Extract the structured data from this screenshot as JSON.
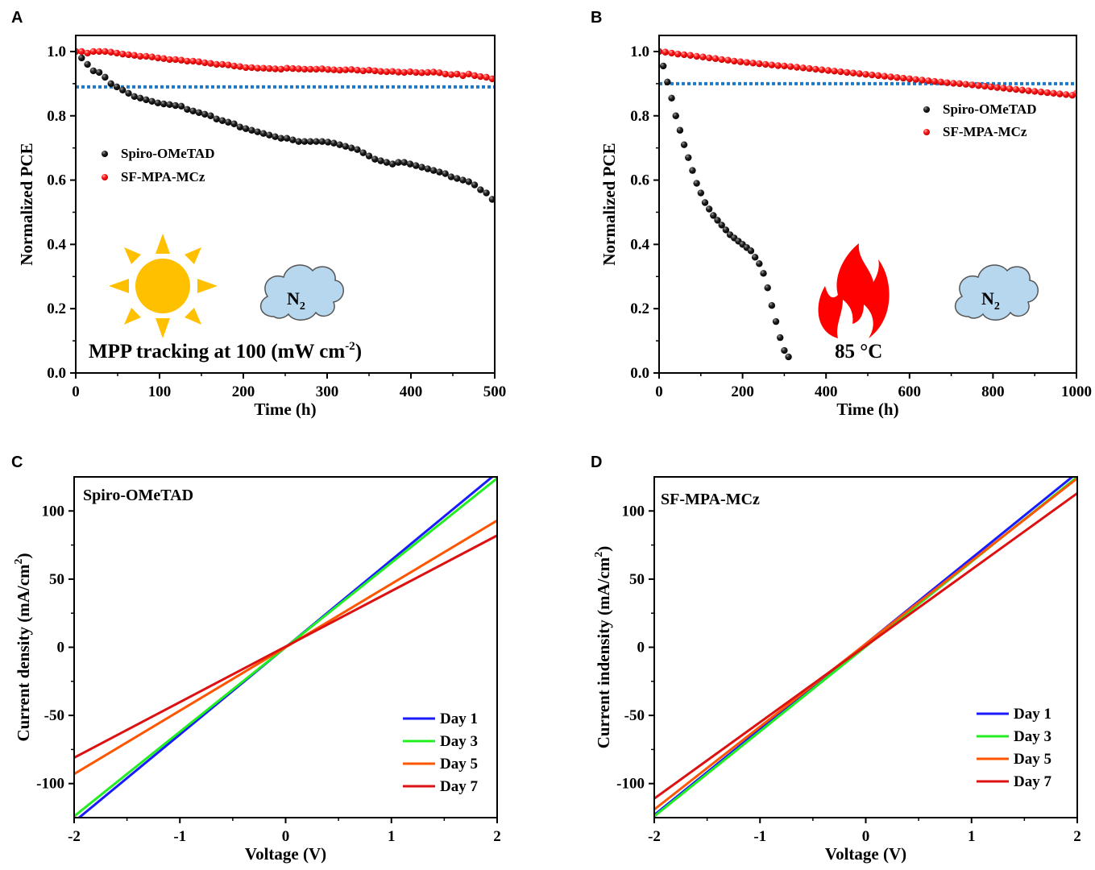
{
  "chart_data": [
    {
      "panel": "A",
      "type": "scatter",
      "xlabel": "Time (h)",
      "ylabel": "Normalized PCE",
      "xlim": [
        0,
        500
      ],
      "ylim": [
        0,
        1.05
      ],
      "xticks": [
        0,
        100,
        200,
        300,
        400,
        500
      ],
      "yticks": [
        0.0,
        0.2,
        0.4,
        0.6,
        0.8,
        1.0
      ],
      "reference_line": 0.89,
      "legend": "upper-left",
      "annotation_text": "MPP tracking at 100 (mW cm",
      "annotation_sup": "-2",
      "annotation_close": ")",
      "gas_label": "N",
      "gas_sub": "2",
      "series": [
        {
          "name": "Spiro-OMeTAD",
          "color": "#000000",
          "x": [
            0,
            7,
            14,
            21,
            28,
            35,
            42,
            49,
            56,
            63,
            70,
            77,
            84,
            91,
            98,
            105,
            112,
            119,
            126,
            133,
            140,
            147,
            154,
            161,
            168,
            175,
            182,
            189,
            196,
            203,
            210,
            217,
            224,
            231,
            238,
            245,
            252,
            259,
            266,
            273,
            280,
            287,
            294,
            301,
            308,
            315,
            322,
            329,
            336,
            343,
            350,
            357,
            364,
            371,
            378,
            385,
            392,
            399,
            406,
            413,
            420,
            427,
            434,
            441,
            448,
            455,
            462,
            469,
            476,
            483,
            490,
            497
          ],
          "y": [
            1.0,
            0.98,
            0.96,
            0.94,
            0.935,
            0.92,
            0.9,
            0.89,
            0.88,
            0.87,
            0.86,
            0.855,
            0.85,
            0.845,
            0.84,
            0.837,
            0.835,
            0.832,
            0.83,
            0.82,
            0.815,
            0.81,
            0.805,
            0.8,
            0.79,
            0.785,
            0.78,
            0.775,
            0.765,
            0.76,
            0.755,
            0.75,
            0.745,
            0.74,
            0.735,
            0.73,
            0.73,
            0.725,
            0.72,
            0.72,
            0.72,
            0.72,
            0.72,
            0.718,
            0.715,
            0.71,
            0.705,
            0.7,
            0.695,
            0.685,
            0.675,
            0.665,
            0.66,
            0.655,
            0.65,
            0.655,
            0.655,
            0.65,
            0.645,
            0.64,
            0.635,
            0.63,
            0.625,
            0.62,
            0.61,
            0.605,
            0.6,
            0.595,
            0.585,
            0.57,
            0.56,
            0.54
          ]
        },
        {
          "name": "SF-MPA-MCz",
          "color": "#ff0000",
          "x": [
            0,
            7,
            14,
            21,
            28,
            35,
            42,
            49,
            56,
            63,
            70,
            77,
            84,
            91,
            98,
            105,
            112,
            119,
            126,
            133,
            140,
            147,
            154,
            161,
            168,
            175,
            182,
            189,
            196,
            203,
            210,
            217,
            224,
            231,
            238,
            245,
            252,
            259,
            266,
            273,
            280,
            287,
            294,
            301,
            308,
            315,
            322,
            329,
            336,
            343,
            350,
            357,
            364,
            371,
            378,
            385,
            392,
            399,
            406,
            413,
            420,
            427,
            434,
            441,
            448,
            455,
            462,
            469,
            476,
            483,
            490,
            497
          ],
          "y": [
            1.0,
            1.0,
            0.995,
            1.0,
            1.0,
            1.0,
            0.998,
            0.995,
            0.992,
            0.99,
            0.988,
            0.985,
            0.985,
            0.983,
            0.98,
            0.978,
            0.975,
            0.975,
            0.973,
            0.97,
            0.97,
            0.968,
            0.965,
            0.963,
            0.96,
            0.96,
            0.958,
            0.955,
            0.953,
            0.95,
            0.95,
            0.948,
            0.948,
            0.947,
            0.946,
            0.945,
            0.948,
            0.947,
            0.946,
            0.945,
            0.945,
            0.945,
            0.946,
            0.944,
            0.943,
            0.942,
            0.943,
            0.944,
            0.942,
            0.94,
            0.942,
            0.94,
            0.938,
            0.937,
            0.938,
            0.936,
            0.935,
            0.937,
            0.935,
            0.934,
            0.935,
            0.936,
            0.934,
            0.93,
            0.928,
            0.93,
            0.925,
            0.93,
            0.925,
            0.922,
            0.92,
            0.915
          ]
        }
      ]
    },
    {
      "panel": "B",
      "type": "scatter",
      "xlabel": "Time (h)",
      "ylabel": "Normalized PCE",
      "xlim": [
        0,
        1000
      ],
      "ylim": [
        0,
        1.05
      ],
      "xticks": [
        0,
        200,
        400,
        600,
        800,
        1000
      ],
      "yticks": [
        0.0,
        0.2,
        0.4,
        0.6,
        0.8,
        1.0
      ],
      "reference_line": 0.9,
      "legend": "upper-right",
      "temperature_label": "85 °C",
      "gas_label": "N",
      "gas_sub": "2",
      "series": [
        {
          "name": "Spiro-OMeTAD",
          "color": "#000000",
          "x": [
            0,
            10,
            20,
            30,
            40,
            50,
            60,
            70,
            80,
            90,
            100,
            110,
            120,
            130,
            140,
            150,
            160,
            170,
            180,
            190,
            200,
            210,
            220,
            230,
            240,
            250,
            260,
            270,
            280,
            290,
            300,
            310
          ],
          "y": [
            1.0,
            0.955,
            0.905,
            0.855,
            0.8,
            0.755,
            0.71,
            0.67,
            0.63,
            0.59,
            0.56,
            0.53,
            0.51,
            0.49,
            0.475,
            0.46,
            0.445,
            0.43,
            0.42,
            0.41,
            0.4,
            0.39,
            0.38,
            0.36,
            0.34,
            0.31,
            0.265,
            0.21,
            0.16,
            0.11,
            0.07,
            0.05
          ]
        },
        {
          "name": "SF-MPA-MCz",
          "color": "#ff0000",
          "x": [
            0,
            15,
            30,
            45,
            60,
            75,
            90,
            105,
            120,
            135,
            150,
            165,
            180,
            195,
            210,
            225,
            240,
            255,
            270,
            285,
            300,
            315,
            330,
            345,
            360,
            375,
            390,
            405,
            420,
            435,
            450,
            465,
            480,
            495,
            510,
            525,
            540,
            555,
            570,
            585,
            600,
            615,
            630,
            645,
            660,
            675,
            690,
            705,
            720,
            735,
            750,
            765,
            780,
            795,
            810,
            825,
            840,
            855,
            870,
            885,
            900,
            915,
            930,
            945,
            960,
            975,
            990,
            1000
          ],
          "y": [
            1.0,
            0.998,
            0.995,
            0.992,
            0.99,
            0.988,
            0.985,
            0.983,
            0.98,
            0.978,
            0.975,
            0.973,
            0.97,
            0.968,
            0.966,
            0.964,
            0.962,
            0.96,
            0.958,
            0.956,
            0.955,
            0.953,
            0.951,
            0.949,
            0.947,
            0.945,
            0.943,
            0.941,
            0.939,
            0.937,
            0.935,
            0.933,
            0.931,
            0.929,
            0.927,
            0.925,
            0.923,
            0.921,
            0.919,
            0.917,
            0.915,
            0.913,
            0.911,
            0.909,
            0.907,
            0.905,
            0.903,
            0.901,
            0.9,
            0.898,
            0.896,
            0.894,
            0.892,
            0.89,
            0.888,
            0.886,
            0.884,
            0.882,
            0.88,
            0.878,
            0.876,
            0.874,
            0.872,
            0.87,
            0.868,
            0.866,
            0.864,
            0.87
          ]
        }
      ]
    },
    {
      "panel": "C",
      "type": "line",
      "title": "Spiro-OMeTAD",
      "xlabel": "Voltage (V)",
      "ylabel": "Current density (mA/cm",
      "ylabel_sup": "2",
      "ylabel_close": ")",
      "xlim": [
        -2,
        2
      ],
      "ylim": [
        -125,
        125
      ],
      "xticks": [
        -2,
        -1,
        0,
        1,
        2
      ],
      "yticks": [
        -100,
        -50,
        0,
        50,
        100
      ],
      "legend": "lower-right",
      "series": [
        {
          "name": "Day 1",
          "color": "#1a1aff",
          "x": [
            -2,
            2
          ],
          "y": [
            -128,
            128
          ]
        },
        {
          "name": "Day 3",
          "color": "#22ee22",
          "x": [
            -2,
            2
          ],
          "y": [
            -124,
            124
          ]
        },
        {
          "name": "Day 5",
          "color": "#ff5500",
          "x": [
            -2,
            2
          ],
          "y": [
            -93,
            93
          ]
        },
        {
          "name": "Day 7",
          "color": "#dd1111",
          "x": [
            -2,
            2
          ],
          "y": [
            -81,
            82
          ]
        }
      ]
    },
    {
      "panel": "D",
      "type": "line",
      "title": "SF-MPA-MCz",
      "xlabel": "Voltage (V)",
      "ylabel": "Current indensity (mA/cm",
      "ylabel_sup": "2",
      "ylabel_close": ")",
      "xlim": [
        -2,
        2
      ],
      "ylim": [
        -125,
        125
      ],
      "xticks": [
        -2,
        -1,
        0,
        1,
        2
      ],
      "yticks": [
        -100,
        -50,
        0,
        50,
        100
      ],
      "legend": "lower-right",
      "series": [
        {
          "name": "Day 1",
          "color": "#1a1aff",
          "x": [
            -2,
            2
          ],
          "y": [
            -123,
            128
          ]
        },
        {
          "name": "Day 3",
          "color": "#22ee22",
          "x": [
            -2,
            2
          ],
          "y": [
            -124,
            125
          ]
        },
        {
          "name": "Day 5",
          "color": "#ff5500",
          "x": [
            -2,
            2
          ],
          "y": [
            -119,
            124
          ]
        },
        {
          "name": "Day 7",
          "color": "#dd1111",
          "x": [
            -2,
            2
          ],
          "y": [
            -111,
            113
          ]
        }
      ]
    }
  ]
}
